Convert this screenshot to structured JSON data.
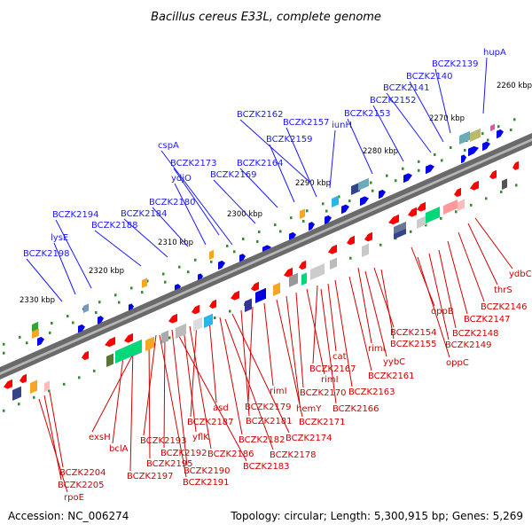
{
  "title": "Bacillus cereus E33L, complete genome",
  "footer": {
    "accession": "Accession: NC_006274",
    "summary": "Topology: circular; Length: 5,300,915 bp; Genes: 5,269"
  },
  "colors": {
    "forward_label": "#1a1aff",
    "reverse_label": "#d20000",
    "forward_gene": "#0000ee",
    "reverse_gene": "#ff0000",
    "backbone": "#808080"
  },
  "ruler": [
    {
      "label": "2260 kbp"
    },
    {
      "label": "2270 kbp"
    },
    {
      "label": "2280 kbp"
    },
    {
      "label": "2290 kbp"
    },
    {
      "label": "2300 kbp"
    },
    {
      "label": "2310 kbp"
    },
    {
      "label": "2320 kbp"
    },
    {
      "label": "2330 kbp"
    }
  ],
  "forward_labels": [
    {
      "text": "hupA"
    },
    {
      "text": "BCZK2139"
    },
    {
      "text": "BCZK2140"
    },
    {
      "text": "BCZK2141"
    },
    {
      "text": "BCZK2152"
    },
    {
      "text": "BCZK2153"
    },
    {
      "text": "BCZK2162"
    },
    {
      "text": "BCZK2157"
    },
    {
      "text": "iunH"
    },
    {
      "text": "BCZK2159"
    },
    {
      "text": "cspA"
    },
    {
      "text": "BCZK2173"
    },
    {
      "text": "ydjO"
    },
    {
      "text": "BCZK2164"
    },
    {
      "text": "BCZK2169"
    },
    {
      "text": "BCZK2180"
    },
    {
      "text": "BCZK2194"
    },
    {
      "text": "BCZK2184"
    },
    {
      "text": "BCZK2188"
    },
    {
      "text": "lysE"
    },
    {
      "text": "BCZK2198"
    }
  ],
  "reverse_labels": [
    {
      "text": "ydbC"
    },
    {
      "text": "thrS"
    },
    {
      "text": "BCZK2146"
    },
    {
      "text": "oppB"
    },
    {
      "text": "BCZK2147"
    },
    {
      "text": "BCZK2148"
    },
    {
      "text": "BCZK2149"
    },
    {
      "text": "oppC"
    },
    {
      "text": "BCZK2154"
    },
    {
      "text": "BCZK2155"
    },
    {
      "text": "rimI"
    },
    {
      "text": "yybC"
    },
    {
      "text": "BCZK2161"
    },
    {
      "text": "BCZK2163"
    },
    {
      "text": "cat"
    },
    {
      "text": "BCZK2167"
    },
    {
      "text": "rimI"
    },
    {
      "text": "BCZK2170"
    },
    {
      "text": "hemY"
    },
    {
      "text": "BCZK2171"
    },
    {
      "text": "BCZK2166"
    },
    {
      "text": "rimI"
    },
    {
      "text": "BCZK2179"
    },
    {
      "text": "BCZK2181"
    },
    {
      "text": "BCZK2174"
    },
    {
      "text": "asd"
    },
    {
      "text": "BCZK2187"
    },
    {
      "text": "BCZK2182"
    },
    {
      "text": "BCZK2178"
    },
    {
      "text": "yflK"
    },
    {
      "text": "BCZK2186"
    },
    {
      "text": "BCZK2183"
    },
    {
      "text": "exsH"
    },
    {
      "text": "BCZK2193"
    },
    {
      "text": "bclA"
    },
    {
      "text": "BCZK2192"
    },
    {
      "text": "BCZK2195"
    },
    {
      "text": "BCZK2190"
    },
    {
      "text": "BCZK2197"
    },
    {
      "text": "BCZK2191"
    },
    {
      "text": "BCZK2204"
    },
    {
      "text": "BCZK2205"
    },
    {
      "text": "rpoE"
    }
  ]
}
